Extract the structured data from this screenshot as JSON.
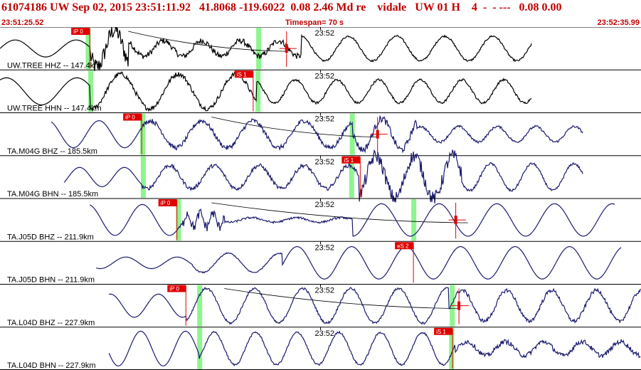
{
  "header": {
    "event_line": "61074186 UW Sep 02, 2015 23:51:11.92   41.8068 -119.6022  0.08 2.46 Md re    vidale   UW 01 H    4  -  - ---   0.08 0.00",
    "start_time": "23:51:25.52",
    "timespan": "Timespan=  70 s",
    "end_time": "23:52:35.99"
  },
  "colors": {
    "header_text": "#c00000",
    "uw_trace": "#000000",
    "ta_trace": "#1a1a6e",
    "pick": "#e00000",
    "pick_window": "#8ef58e",
    "divider": "#000000"
  },
  "minute_mark": "23:52",
  "traces": [
    {
      "label": "UW.TREE HHZ -- 147.4km",
      "color": "#000000",
      "data_start": 0.0,
      "data_end": 0.83,
      "shape": [
        {
          "from": 0.0,
          "period": 0.095,
          "amp": 0.22
        },
        {
          "from": 0.14,
          "period": 0.055,
          "amp": 0.48,
          "noise": 0.45
        },
        {
          "from": 0.2,
          "period": 0.06,
          "amp": 0.2,
          "noise": 0.15
        },
        {
          "from": 0.47,
          "period": 0.075,
          "amp": 0.32,
          "noise": 0.05
        }
      ],
      "green": [
        0.137,
        0.403
      ],
      "picks": [
        {
          "x": 0.14,
          "label": "iP 0",
          "type": "P"
        },
        {
          "x": 0.447,
          "label": "",
          "type": "amp"
        }
      ],
      "coda": [
        0.2,
        0.447
      ]
    },
    {
      "label": "UW.TREE HHN -- 147.4km",
      "color": "#000000",
      "data_start": 0.0,
      "data_end": 0.83,
      "shape": [
        {
          "from": 0.0,
          "period": 0.11,
          "amp": 0.35
        },
        {
          "from": 0.14,
          "period": 0.09,
          "amp": 0.45,
          "noise": 0.12
        },
        {
          "from": 0.4,
          "period": 0.065,
          "amp": 0.3,
          "noise": 0.06
        }
      ],
      "green": [
        0.141,
        0.402
      ],
      "picks": [
        {
          "x": 0.395,
          "label": "iS 1",
          "type": "S"
        }
      ]
    },
    {
      "label": "TA.M04G BHZ -- 185.5km",
      "color": "#1a1a6e",
      "data_start": 0.08,
      "data_end": 0.91,
      "shape": [
        {
          "from": 0.08,
          "period": 0.08,
          "amp": 0.35
        },
        {
          "from": 0.22,
          "period": 0.08,
          "amp": 0.35,
          "noise": 0.12
        },
        {
          "from": 0.55,
          "period": 0.06,
          "amp": 0.4,
          "noise": 0.18
        },
        {
          "from": 0.65,
          "period": 0.06,
          "amp": 0.2,
          "noise": 0.06
        }
      ],
      "green": [
        0.222,
        0.549
      ],
      "picks": [
        {
          "x": 0.221,
          "label": "iP 0",
          "type": "P"
        },
        {
          "x": 0.589,
          "label": "",
          "type": "amp"
        }
      ],
      "coda": [
        0.33,
        0.589
      ]
    },
    {
      "label": "TA.M04G BHN -- 185.5km",
      "color": "#1a1a6e",
      "data_start": 0.1,
      "data_end": 0.91,
      "shape": [
        {
          "from": 0.1,
          "period": 0.07,
          "amp": 0.25
        },
        {
          "from": 0.22,
          "period": 0.07,
          "amp": 0.3,
          "noise": 0.1
        },
        {
          "from": 0.56,
          "period": 0.06,
          "amp": 0.55,
          "noise": 0.35
        },
        {
          "from": 0.72,
          "period": 0.065,
          "amp": 0.35,
          "noise": 0.06
        }
      ],
      "green": [
        0.223,
        0.548
      ],
      "picks": [
        {
          "x": 0.562,
          "label": "iS 1",
          "type": "S"
        }
      ]
    },
    {
      "label": "TA.J05D BHZ -- 211.9km",
      "color": "#1a1a6e",
      "data_start": 0.14,
      "data_end": 0.96,
      "shape": [
        {
          "from": 0.14,
          "period": 0.085,
          "amp": 0.4
        },
        {
          "from": 0.28,
          "period": 0.02,
          "amp": 0.18,
          "noise": 0.25
        },
        {
          "from": 0.35,
          "period": 0.07,
          "amp": 0.06,
          "noise": 0.05
        },
        {
          "from": 0.55,
          "period": 0.09,
          "amp": 0.42
        }
      ],
      "green": [
        0.278,
        0.645
      ],
      "picks": [
        {
          "x": 0.276,
          "label": "iP 0",
          "type": "P"
        },
        {
          "x": 0.711,
          "label": "",
          "type": "amp"
        }
      ],
      "coda": [
        0.33,
        0.73
      ]
    },
    {
      "label": "TA.J05D BHN -- 211.9km",
      "color": "#1a1a6e",
      "data_start": 0.15,
      "data_end": 0.97,
      "shape": [
        {
          "from": 0.15,
          "period": 0.08,
          "amp": 0.15
        },
        {
          "from": 0.3,
          "period": 0.08,
          "amp": 0.25,
          "noise": 0.03
        },
        {
          "from": 0.44,
          "period": 0.085,
          "amp": 0.42
        }
      ],
      "green": [],
      "picks": [
        {
          "x": 0.645,
          "label": "eS 2",
          "type": "S"
        }
      ]
    },
    {
      "label": "TA.L04D BHZ -- 227.9km",
      "color": "#1a1a6e",
      "data_start": 0.17,
      "data_end": 1.0,
      "shape": [
        {
          "from": 0.17,
          "period": 0.075,
          "amp": 0.3
        },
        {
          "from": 0.29,
          "period": 0.075,
          "amp": 0.45,
          "noise": 0.06
        },
        {
          "from": 0.7,
          "period": 0.07,
          "amp": 0.4,
          "noise": 0.1
        }
      ],
      "green": [
        0.311,
        0.705
      ],
      "picks": [
        {
          "x": 0.29,
          "label": "iP 0",
          "type": "P"
        },
        {
          "x": 0.716,
          "label": "",
          "type": "amp"
        }
      ],
      "coda": [
        0.35,
        0.716
      ]
    },
    {
      "label": "TA.L04D BHN -- 227.9km",
      "color": "#1a1a6e",
      "data_start": 0.17,
      "data_end": 1.0,
      "shape": [
        {
          "from": 0.17,
          "period": 0.07,
          "amp": 0.45
        },
        {
          "from": 0.31,
          "period": 0.065,
          "amp": 0.42,
          "noise": 0.05
        },
        {
          "from": 0.71,
          "period": 0.06,
          "amp": 0.18,
          "noise": 0.12
        }
      ],
      "green": [
        0.311,
        0.704
      ],
      "picks": [
        {
          "x": 0.706,
          "label": "iS 1",
          "type": "S"
        }
      ]
    }
  ]
}
